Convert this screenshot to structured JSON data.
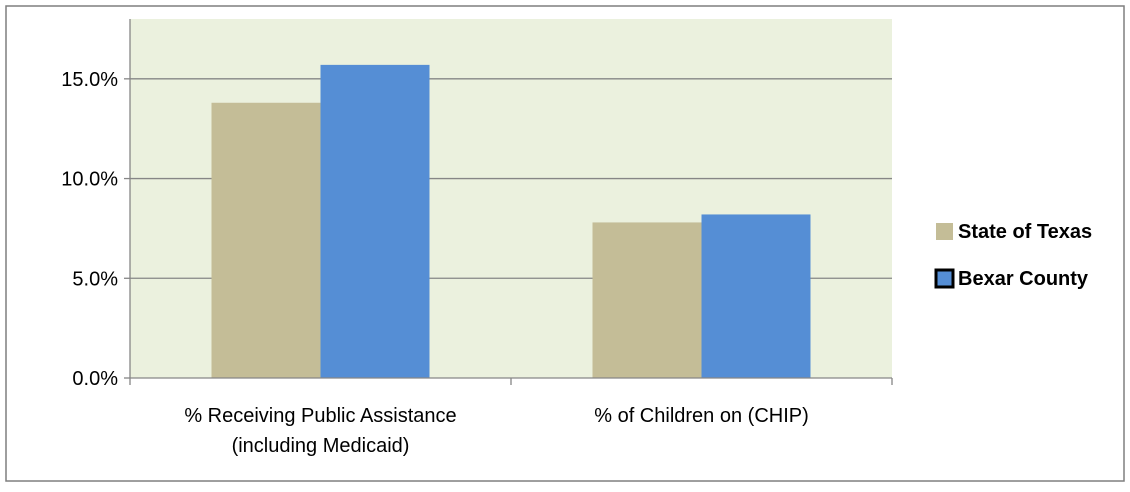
{
  "chart_data": {
    "type": "bar",
    "title": "",
    "xlabel": "",
    "ylabel": "",
    "ylim": [
      0,
      0.18
    ],
    "yticks": [
      0,
      0.05,
      0.1,
      0.15
    ],
    "ytick_labels": [
      "0.0%",
      "5.0%",
      "10.0%",
      "15.0%"
    ],
    "grid": true,
    "legend_position": "right",
    "categories": [
      [
        "% Receiving Public Assistance",
        "(including Medicaid)"
      ],
      [
        "% of Children on (CHIP)"
      ]
    ],
    "series": [
      {
        "name": "State of Texas",
        "color": "#c4bd97",
        "values": [
          0.138,
          0.078
        ]
      },
      {
        "name": "Bexar County",
        "color": "#558ed5",
        "values": [
          0.157,
          0.082
        ]
      }
    ],
    "colors": {
      "plot_background": "#ebf1de",
      "gridline": "#868686",
      "frame_border": "#7f7f7f",
      "text": "#000000",
      "legend_marker_border": "#000000"
    }
  }
}
